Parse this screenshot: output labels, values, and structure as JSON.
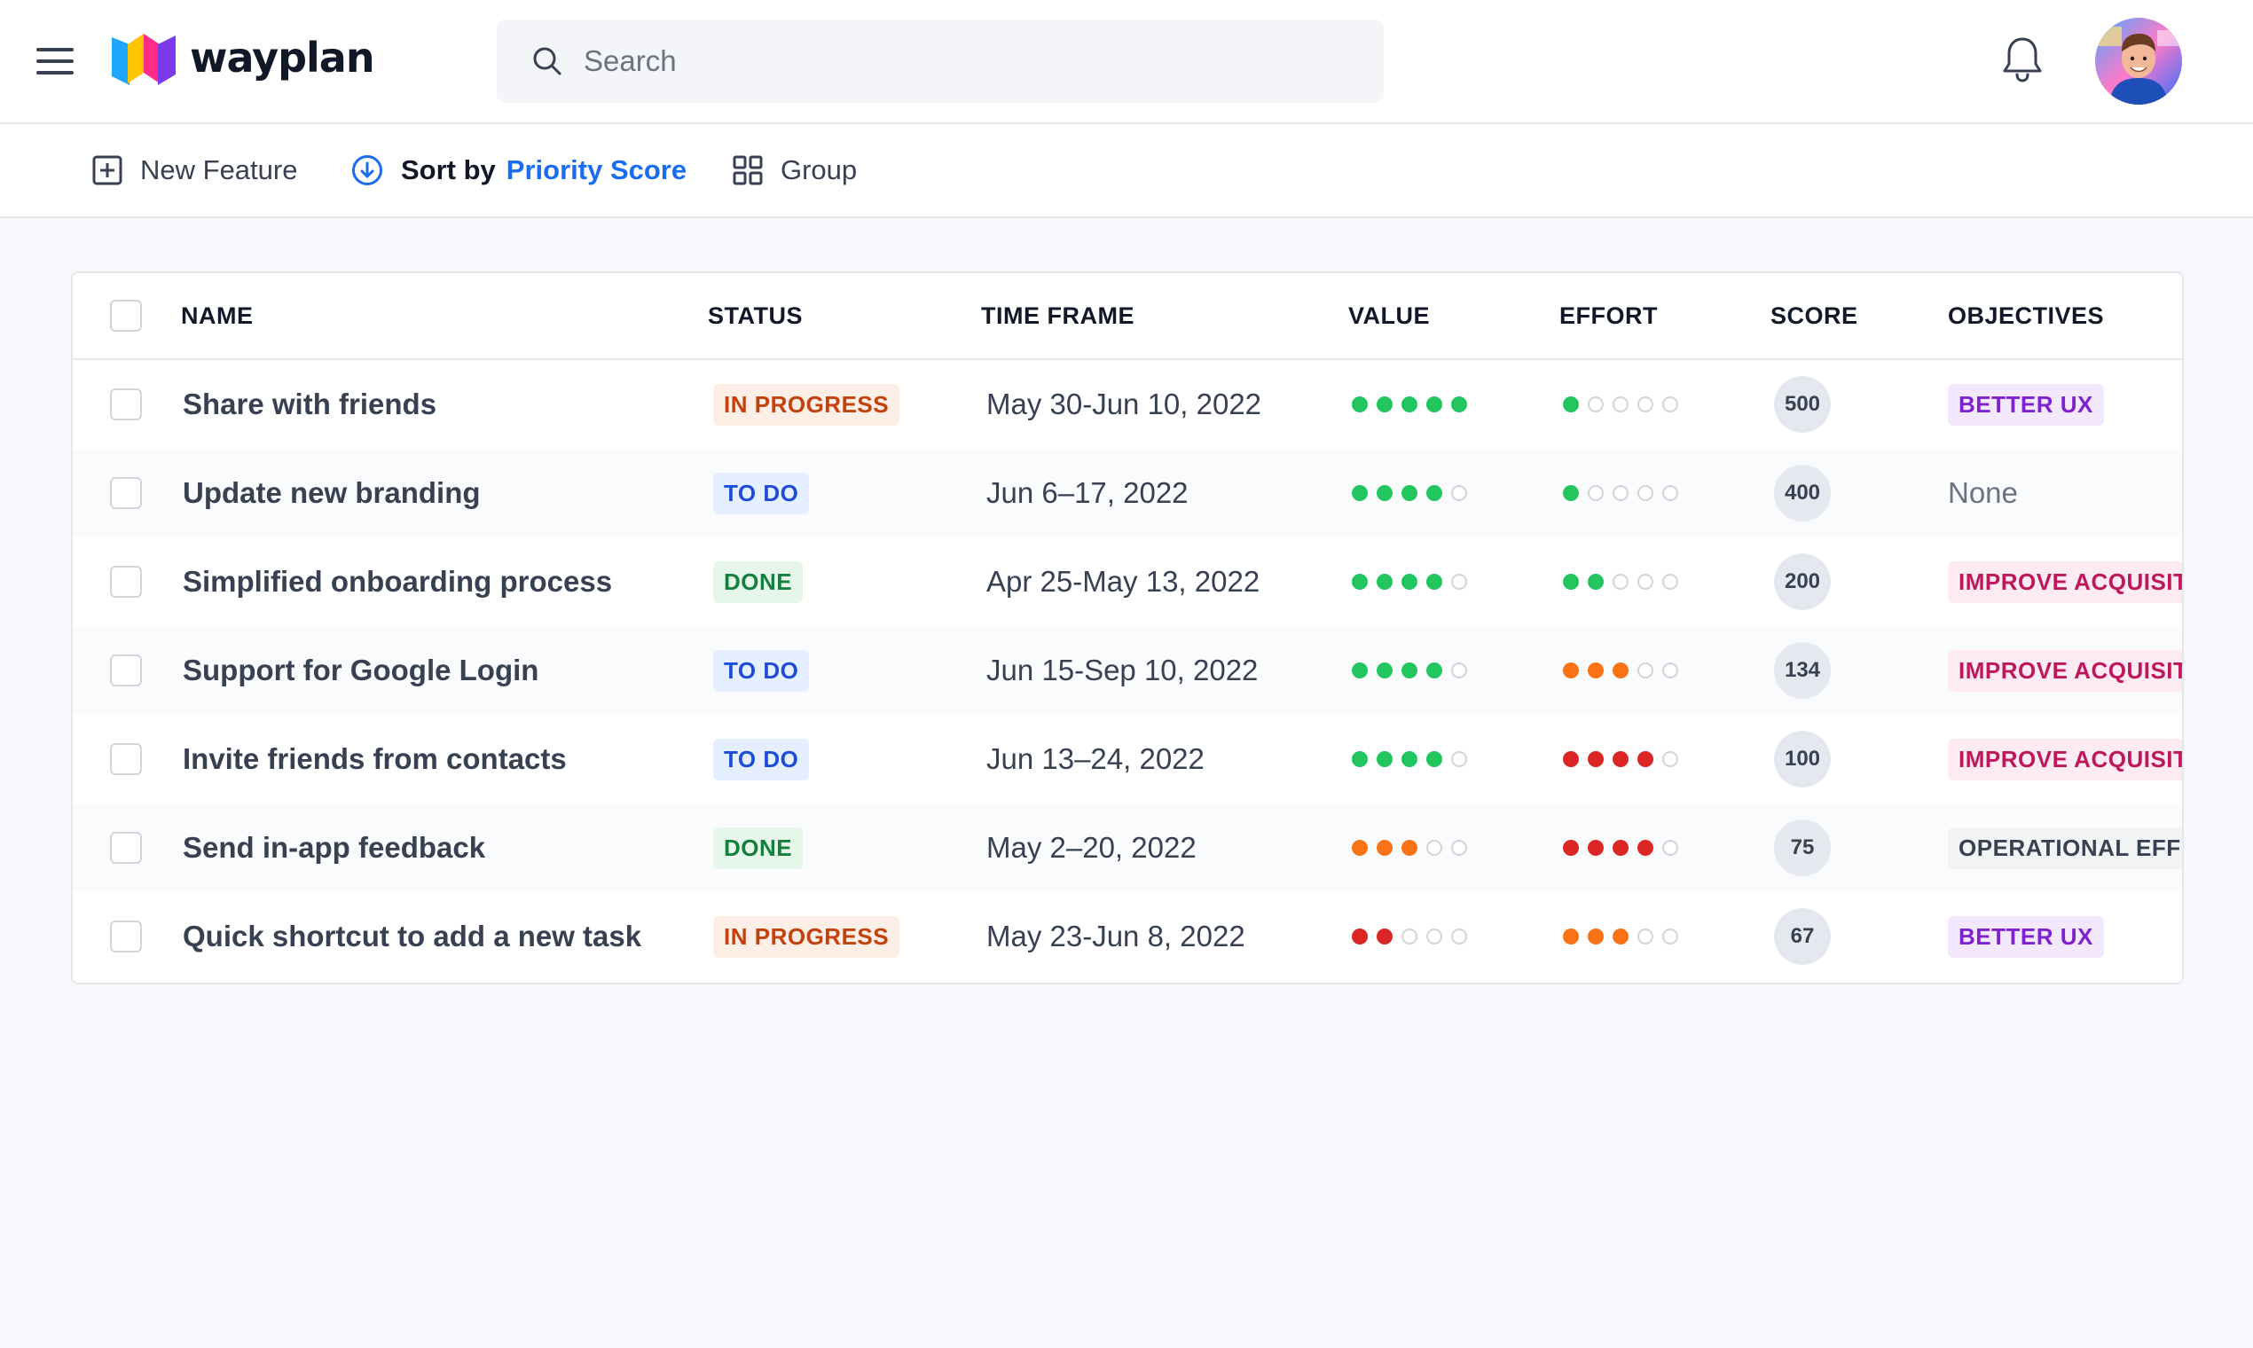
{
  "app": {
    "name": "wayplan"
  },
  "search": {
    "placeholder": "Search"
  },
  "toolbar": {
    "new_feature": "New Feature",
    "sort_label": "Sort by",
    "sort_value": "Priority Score",
    "group": "Group"
  },
  "table": {
    "headers": {
      "name": "NAME",
      "status": "STATUS",
      "time_frame": "TIME FRAME",
      "value": "VALUE",
      "effort": "EFFORT",
      "score": "SCORE",
      "objectives": "OBJECTIVES"
    },
    "rows": [
      {
        "name": "Share with friends",
        "status": "IN PROGRESS",
        "status_kind": "inprogress",
        "time_frame": "May 30-Jun 10, 2022",
        "value": 5,
        "value_color": "#22c55e",
        "effort": 1,
        "effort_color": "#22c55e",
        "score": "500",
        "objective": "BETTER UX",
        "objective_kind": "purple"
      },
      {
        "name": "Update new branding",
        "status": "TO DO",
        "status_kind": "todo",
        "time_frame": "Jun 6–17, 2022",
        "value": 4,
        "value_color": "#22c55e",
        "effort": 1,
        "effort_color": "#22c55e",
        "score": "400",
        "objective": "None",
        "objective_kind": "none"
      },
      {
        "name": "Simplified onboarding process",
        "status": "DONE",
        "status_kind": "done",
        "time_frame": "Apr 25-May 13, 2022",
        "value": 4,
        "value_color": "#22c55e",
        "effort": 2,
        "effort_color": "#22c55e",
        "score": "200",
        "objective": "IMPROVE ACQUISIT",
        "objective_kind": "pink"
      },
      {
        "name": "Support for Google Login",
        "status": "TO DO",
        "status_kind": "todo",
        "time_frame": "Jun 15-Sep 10, 2022",
        "value": 4,
        "value_color": "#22c55e",
        "effort": 3,
        "effort_color": "#f97316",
        "score": "134",
        "objective": "IMPROVE ACQUISIT",
        "objective_kind": "pink"
      },
      {
        "name": "Invite friends from contacts",
        "status": "TO DO",
        "status_kind": "todo",
        "time_frame": "Jun 13–24, 2022",
        "value": 4,
        "value_color": "#22c55e",
        "effort": 4,
        "effort_color": "#dc2626",
        "score": "100",
        "objective": "IMPROVE ACQUISIT",
        "objective_kind": "pink"
      },
      {
        "name": "Send in-app feedback",
        "status": "DONE",
        "status_kind": "done",
        "time_frame": "May 2–20, 2022",
        "value": 3,
        "value_color": "#f97316",
        "effort": 4,
        "effort_color": "#dc2626",
        "score": "75",
        "objective": "OPERATIONAL EFFI",
        "objective_kind": "gray"
      },
      {
        "name": "Quick shortcut to add a new task",
        "status": "IN PROGRESS",
        "status_kind": "inprogress",
        "time_frame": "May 23-Jun 8, 2022",
        "value": 2,
        "value_color": "#dc2626",
        "effort": 3,
        "effort_color": "#f97316",
        "score": "67",
        "objective": "BETTER UX",
        "objective_kind": "purple"
      }
    ]
  }
}
